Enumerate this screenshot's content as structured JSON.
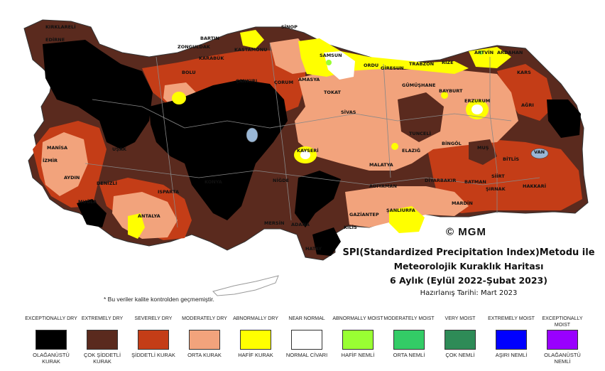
{
  "header": {
    "title_line1": "SPI(Standardized Precipitation Index)Metodu ile",
    "title_line2": "Meteorolojik Kuraklık Haritası",
    "title_line3": "6 Aylık (Eylül 2022-Şubat 2023)",
    "prepared": "Hazırlanış Tarihi: Mart 2023"
  },
  "copyright": "© MGM",
  "note": "* Bu veriler kalite kontrolden geçmemiştir.",
  "colors": {
    "exceptionally_dry": "#000000",
    "extremely_dry": "#5a2a1e",
    "severely_dry": "#c43d17",
    "moderately_dry": "#f2a37c",
    "abnormally_dry": "#ffff00",
    "near_normal": "#ffffff",
    "abnormally_moist": "#99ff33",
    "moderately_moist": "#33cc66",
    "very_moist": "#2e8b57",
    "extremely_moist": "#0000ff",
    "exceptionally_moist": "#9900ff"
  },
  "legend": [
    {
      "en": "EXCEPTIONALLY DRY",
      "tr": "OLAĞANÜSTÜ KURAK",
      "color": "#000000"
    },
    {
      "en": "EXTREMELY DRY",
      "tr": "ÇOK ŞİDDETLİ KURAK",
      "color": "#5a2a1e"
    },
    {
      "en": "SEVERELY DRY",
      "tr": "ŞİDDETLİ KURAK",
      "color": "#c43d17"
    },
    {
      "en": "MODERATELY DRY",
      "tr": "ORTA KURAK",
      "color": "#f2a37c"
    },
    {
      "en": "ABNORMALLY DRY",
      "tr": "HAFİF KURAK",
      "color": "#ffff00"
    },
    {
      "en": "NEAR NORMAL",
      "tr": "NORMAL CİVARI",
      "color": "#ffffff"
    },
    {
      "en": "ABNORMALLY MOIST",
      "tr": "HAFİF NEMLİ",
      "color": "#99ff33"
    },
    {
      "en": "MODERATELY MOIST",
      "tr": "ORTA NEMLİ",
      "color": "#33cc66"
    },
    {
      "en": "VERY MOIST",
      "tr": "ÇOK NEMLİ",
      "color": "#2e8b57"
    },
    {
      "en": "EXTREMELY MOIST",
      "tr": "AŞIRI NEMLİ",
      "color": "#0000ff"
    },
    {
      "en": "EXCEPTIONALLY MOIST",
      "tr": "OLAĞANÜSTÜ NEMLİ",
      "color": "#9900ff"
    }
  ],
  "cities": [
    {
      "name": "KIRKLARELİ"
    },
    {
      "name": "EDİRNE"
    },
    {
      "name": "BARTIN"
    },
    {
      "name": "ZONGULDAK"
    },
    {
      "name": "SİNOP"
    },
    {
      "name": "KASTAMONU"
    },
    {
      "name": "KARABÜK"
    },
    {
      "name": "SAMSUN"
    },
    {
      "name": "ORDU"
    },
    {
      "name": "GİRESUN"
    },
    {
      "name": "TRABZON"
    },
    {
      "name": "RİZE"
    },
    {
      "name": "ARTVİN"
    },
    {
      "name": "ARDAHAN"
    },
    {
      "name": "KARS"
    },
    {
      "name": "BOLU"
    },
    {
      "name": "ÇANKIRI"
    },
    {
      "name": "ÇORUM"
    },
    {
      "name": "AMASYA"
    },
    {
      "name": "TOKAT"
    },
    {
      "name": "GÜMÜŞHANE"
    },
    {
      "name": "BAYBURT"
    },
    {
      "name": "ERZURUM"
    },
    {
      "name": "AĞRI"
    },
    {
      "name": "SİVAS"
    },
    {
      "name": "TUNCELİ"
    },
    {
      "name": "BİNGÖL"
    },
    {
      "name": "MUŞ"
    },
    {
      "name": "BİTLİS"
    },
    {
      "name": "VAN"
    },
    {
      "name": "ELAZIĞ"
    },
    {
      "name": "MALATYA"
    },
    {
      "name": "KAYSERİ"
    },
    {
      "name": "MANİSA"
    },
    {
      "name": "İZMİR"
    },
    {
      "name": "AYDIN"
    },
    {
      "name": "UŞAK"
    },
    {
      "name": "DENİZLİ"
    },
    {
      "name": "MUĞLA"
    },
    {
      "name": "ISPARTA"
    },
    {
      "name": "ANTALYA"
    },
    {
      "name": "KONYA"
    },
    {
      "name": "NİĞDE"
    },
    {
      "name": "MERSİN"
    },
    {
      "name": "ADANA"
    },
    {
      "name": "HATAY"
    },
    {
      "name": "KİLİS"
    },
    {
      "name": "GAZİANTEP"
    },
    {
      "name": "ŞANLIURFA"
    },
    {
      "name": "ADIYAMAN"
    },
    {
      "name": "DİYARBAKIR"
    },
    {
      "name": "BATMAN"
    },
    {
      "name": "SİİRT"
    },
    {
      "name": "ŞIRNAK"
    },
    {
      "name": "HAKKARİ"
    },
    {
      "name": "MARDİN"
    }
  ]
}
